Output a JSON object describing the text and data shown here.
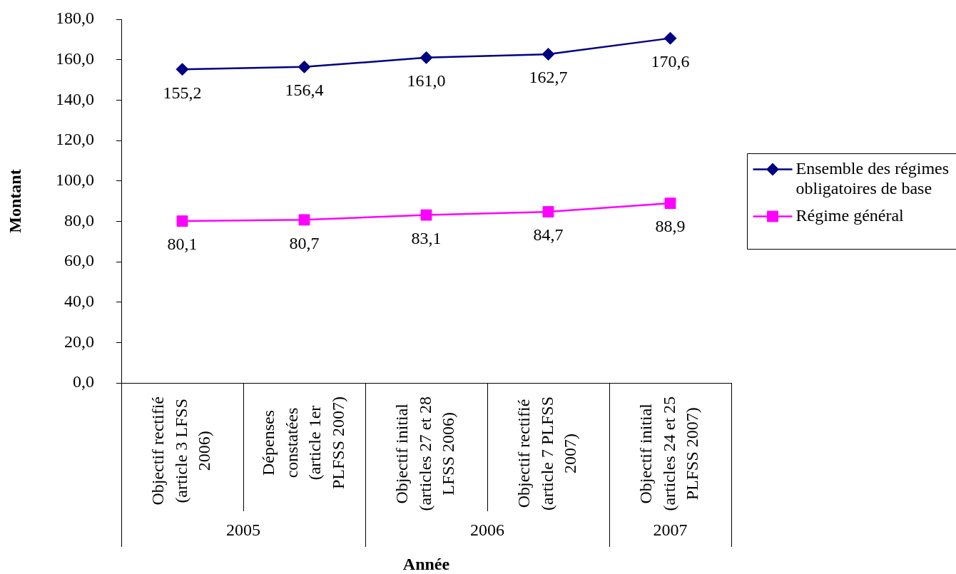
{
  "chart_data": {
    "type": "line",
    "xlabel": "Année",
    "ylabel": "Montant",
    "categories": [
      "Objectif rectifié (article 3 LFSS 2006)",
      "Dépenses constatées (article 1er PLFSS 2007)",
      "Objectif initial (articles 27 et 28 LFSS 2006)",
      "Objectif rectifié (article 7 PLFSS 2007)",
      "Objectif initial (articles 24 et 25 PLFSS 2007)"
    ],
    "series": [
      {
        "name": "Ensemble des régimes obligatoires de base",
        "color": "#000080",
        "marker": "diamond",
        "values": [
          155.2,
          156.4,
          161.0,
          162.7,
          170.6
        ],
        "value_labels": [
          "155,2",
          "156,4",
          "161,0",
          "162,7",
          "170,6"
        ]
      },
      {
        "name": "Régime général",
        "color": "#ff00ff",
        "marker": "square",
        "values": [
          80.1,
          80.7,
          83.1,
          84.7,
          88.9
        ],
        "value_labels": [
          "80,1",
          "80,7",
          "83,1",
          "84,7",
          "88,9"
        ]
      }
    ],
    "ylim": [
      0,
      180
    ],
    "yticks": [
      {
        "value": 0,
        "label": "0,0"
      },
      {
        "value": 20,
        "label": "20,0"
      },
      {
        "value": 40,
        "label": "40,0"
      },
      {
        "value": 60,
        "label": "60,0"
      },
      {
        "value": 80,
        "label": "80,0"
      },
      {
        "value": 100,
        "label": "100,0"
      },
      {
        "value": 120,
        "label": "120,0"
      },
      {
        "value": 140,
        "label": "140,0"
      },
      {
        "value": 160,
        "label": "160,0"
      },
      {
        "value": 180,
        "label": "180,0"
      }
    ],
    "legend": "right",
    "annotations": [
      "2005",
      "2006",
      "2007"
    ]
  }
}
